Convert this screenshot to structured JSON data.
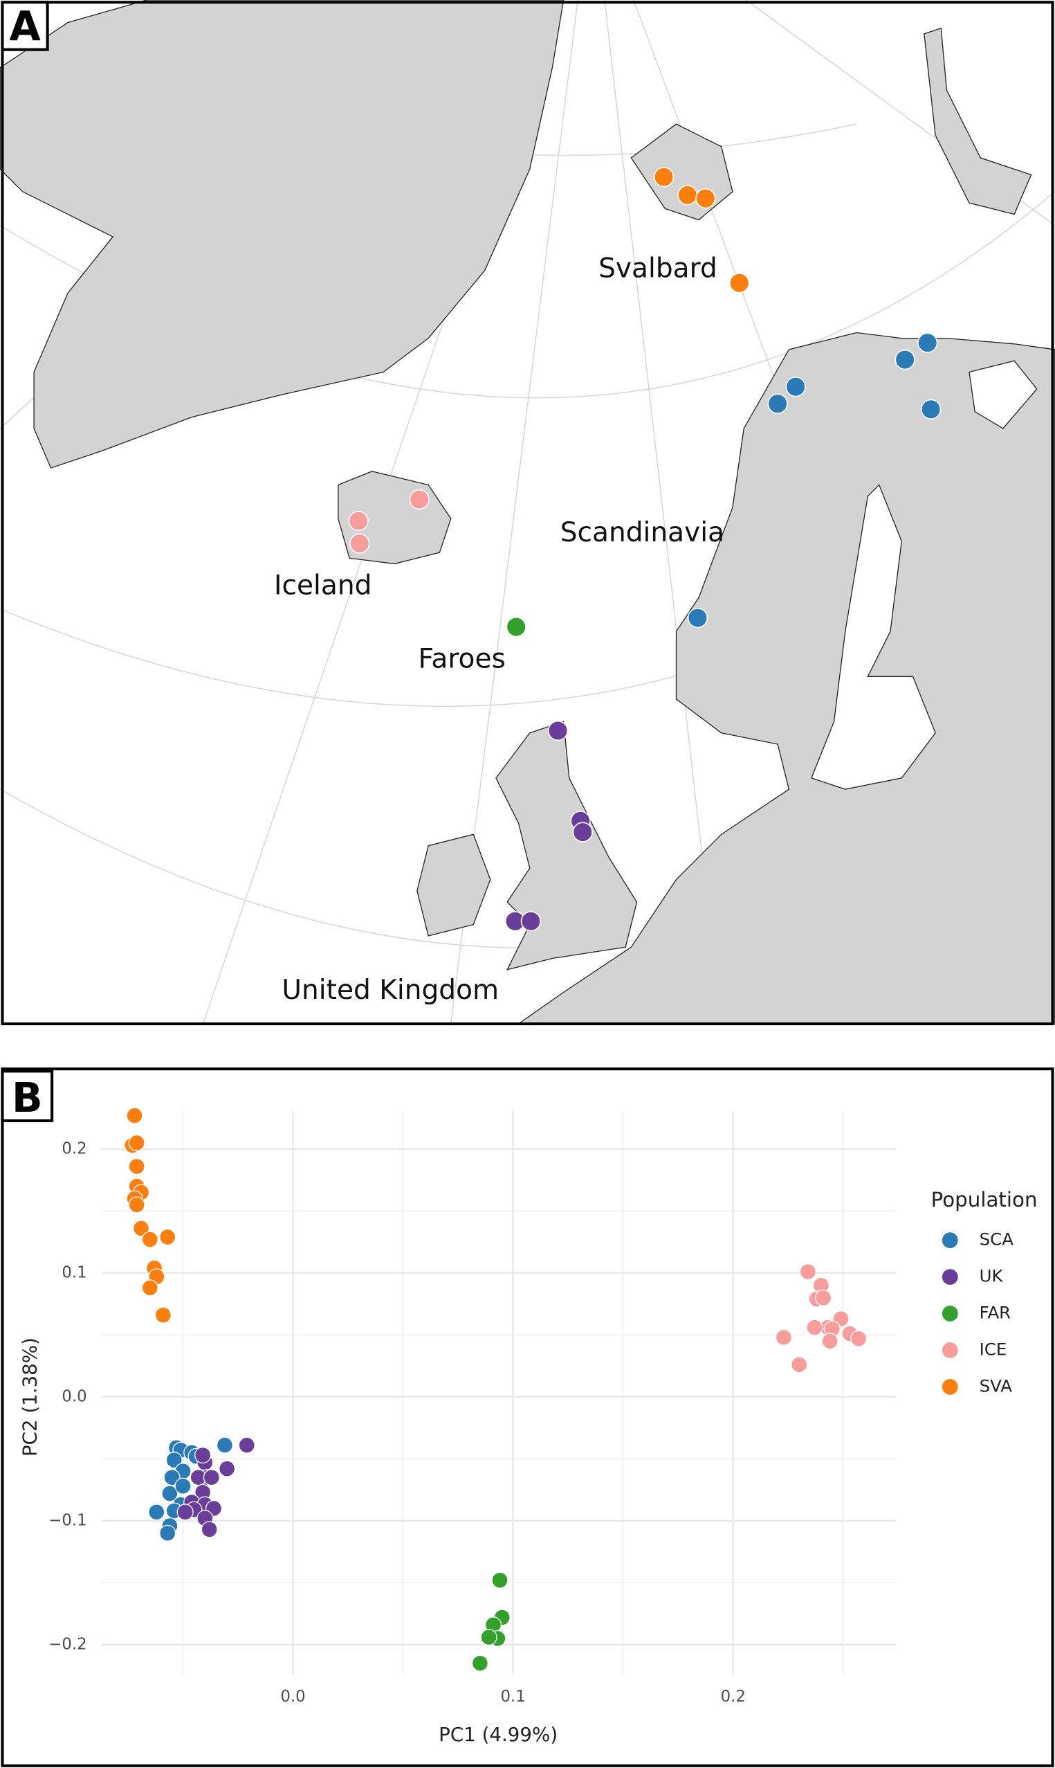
{
  "panel_a": {
    "label": "A",
    "place_labels": [
      "Svalbard",
      "Scandinavia",
      "Iceland",
      "Faroes",
      "United Kingdom"
    ]
  },
  "panel_b": {
    "label": "B"
  },
  "chart_data": {
    "type": "scatter",
    "x_label": "PC1 (4.99%)",
    "y_label": "PC2 (1.38%)",
    "legend_title": "Population",
    "legend": "right",
    "xlim": [
      -0.087,
      0.274
    ],
    "ylim": [
      -0.224,
      0.231
    ],
    "xticks": [
      {
        "value": 0,
        "label": "0.0"
      },
      0.1,
      0.2
    ],
    "yticks": [
      {
        "value": -0.2,
        "label": "−0.2"
      },
      {
        "value": -0.1,
        "label": "−0.1"
      },
      {
        "value": 0,
        "label": "0.0"
      },
      0.1,
      0.2
    ],
    "x_minor_ticks": [
      -0.05,
      0.05,
      0.15,
      0.25
    ],
    "y_minor_ticks": [
      -0.15,
      -0.05,
      0.05,
      0.15
    ],
    "grid": true,
    "series": [
      {
        "name": "SCA",
        "color": "#2a7ab8",
        "x": [
          -0.053,
          -0.051,
          -0.046,
          -0.044,
          -0.031,
          -0.054,
          -0.05,
          -0.055,
          -0.056,
          -0.051,
          -0.054,
          -0.062,
          -0.056,
          -0.057,
          -0.05
        ],
        "y": [
          -0.041,
          -0.043,
          -0.045,
          -0.048,
          -0.039,
          -0.051,
          -0.06,
          -0.065,
          -0.078,
          -0.087,
          -0.092,
          -0.093,
          -0.104,
          -0.11,
          -0.072
        ]
      },
      {
        "name": "UK",
        "color": "#6a3d9a",
        "x": [
          -0.021,
          -0.03,
          -0.04,
          -0.039,
          -0.043,
          -0.037,
          -0.041,
          -0.046,
          -0.04,
          -0.045,
          -0.049,
          -0.036,
          -0.04,
          -0.038,
          -0.041
        ],
        "y": [
          -0.039,
          -0.058,
          -0.053,
          -0.065,
          -0.065,
          -0.065,
          -0.077,
          -0.085,
          -0.087,
          -0.091,
          -0.093,
          -0.09,
          -0.098,
          -0.107,
          -0.047
        ]
      },
      {
        "name": "FAR",
        "color": "#33a02c",
        "x": [
          0.094,
          0.095,
          0.091,
          0.093,
          0.089,
          0.085
        ],
        "y": [
          -0.148,
          -0.178,
          -0.184,
          -0.195,
          -0.194,
          -0.215
        ]
      },
      {
        "name": "ICE",
        "color": "#f89c9c",
        "x": [
          0.234,
          0.24,
          0.238,
          0.241,
          0.249,
          0.243,
          0.237,
          0.245,
          0.253,
          0.257,
          0.223,
          0.244,
          0.23
        ],
        "y": [
          0.101,
          0.09,
          0.079,
          0.08,
          0.063,
          0.056,
          0.056,
          0.055,
          0.051,
          0.047,
          0.048,
          0.045,
          0.026
        ]
      },
      {
        "name": "SVA",
        "color": "#ff7f0e",
        "x": [
          -0.072,
          -0.073,
          -0.071,
          -0.071,
          -0.071,
          -0.069,
          -0.072,
          -0.071,
          -0.069,
          -0.065,
          -0.057,
          -0.063,
          -0.062,
          -0.065,
          -0.059
        ],
        "y": [
          0.227,
          0.203,
          0.205,
          0.186,
          0.17,
          0.165,
          0.16,
          0.155,
          0.136,
          0.127,
          0.129,
          0.104,
          0.097,
          0.088,
          0.066
        ]
      }
    ]
  }
}
